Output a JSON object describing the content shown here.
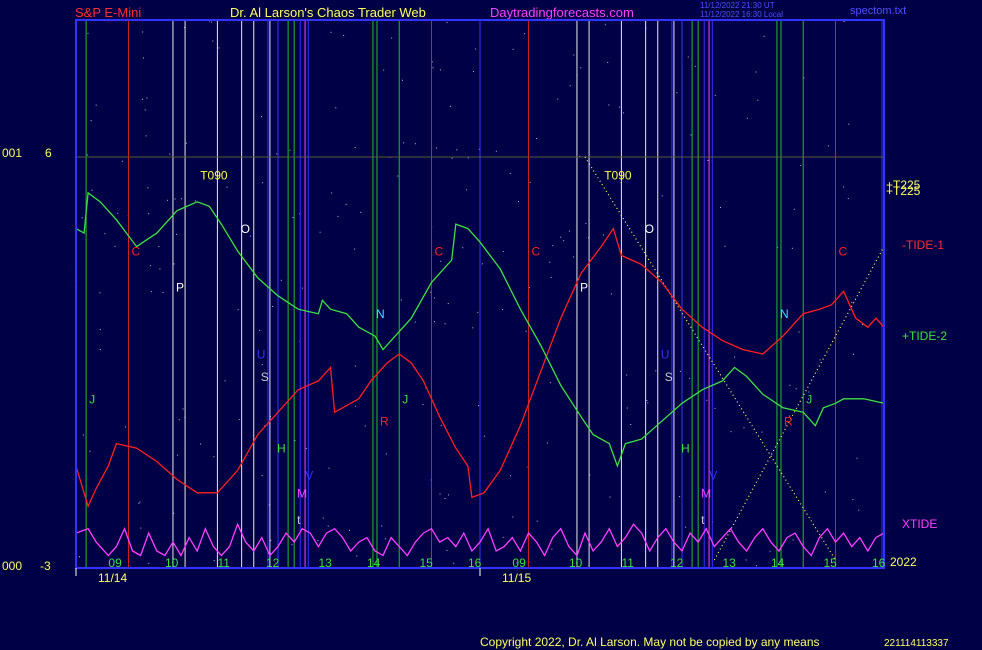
{
  "header": {
    "symbol": "S&P E-Mini",
    "author": "Dr. Al Larson's Chaos Trader Web",
    "site": "Daytradingforecasts.com",
    "timestamp_line1": "11/12/2022 21:30 UT",
    "timestamp_line2": "11/12/2022 16:30 Local",
    "file": "spectom.txt"
  },
  "footer": {
    "copyright": "Copyright 2022, Dr. Al Larson. May not be copied by any means",
    "code": "221114113337"
  },
  "colors": {
    "background": "#000046",
    "frame": "#3333ff",
    "tide1": "#ff2020",
    "tide2": "#40e040",
    "xtide": "#ff40ff",
    "dotted": "#ffff60"
  },
  "chart_data": {
    "type": "line",
    "y_axis": {
      "top_value": "6",
      "bottom_value": "-3",
      "top_tag": "001",
      "bottom_tag": "000"
    },
    "x_axis": {
      "hour_labels_day1": [
        "09",
        "10",
        "11",
        "12",
        "13",
        "14",
        "15",
        "16"
      ],
      "hour_labels_day2": [
        "09",
        "10",
        "11",
        "12",
        "13",
        "14",
        "15",
        "16"
      ],
      "dates": [
        "11/14",
        "11/15"
      ],
      "year": "2022"
    },
    "vertical_lines": [
      {
        "x": 0.025,
        "color": "green"
      },
      {
        "x": 0.13,
        "color": "red"
      },
      {
        "x": 0.24,
        "color": "white"
      },
      {
        "x": 0.27,
        "color": "white"
      },
      {
        "x": 0.35,
        "color": "white"
      },
      {
        "x": 0.41,
        "color": "white"
      },
      {
        "x": 0.44,
        "color": "white"
      },
      {
        "x": 0.475,
        "color": "blue"
      },
      {
        "x": 0.48,
        "color": "white"
      },
      {
        "x": 0.5,
        "color": "blue"
      },
      {
        "x": 0.525,
        "color": "green"
      },
      {
        "x": 0.54,
        "color": "green"
      },
      {
        "x": 0.555,
        "color": "blue"
      },
      {
        "x": 0.567,
        "color": "magenta"
      },
      {
        "x": 0.575,
        "color": "blue"
      },
      {
        "x": 0.735,
        "color": "green"
      },
      {
        "x": 0.745,
        "color": "green"
      },
      {
        "x": 0.8,
        "color": "green"
      },
      {
        "x": 0.88,
        "color": "red"
      },
      {
        "x": 1.0,
        "color": "blue"
      },
      {
        "x": 1.12,
        "color": "red"
      },
      {
        "x": 1.24,
        "color": "white"
      },
      {
        "x": 1.27,
        "color": "white"
      },
      {
        "x": 1.35,
        "color": "white"
      },
      {
        "x": 1.41,
        "color": "white"
      },
      {
        "x": 1.44,
        "color": "white"
      },
      {
        "x": 1.475,
        "color": "blue"
      },
      {
        "x": 1.48,
        "color": "white"
      },
      {
        "x": 1.5,
        "color": "blue"
      },
      {
        "x": 1.525,
        "color": "green"
      },
      {
        "x": 1.54,
        "color": "green"
      },
      {
        "x": 1.555,
        "color": "blue"
      },
      {
        "x": 1.567,
        "color": "magenta"
      },
      {
        "x": 1.575,
        "color": "blue"
      },
      {
        "x": 1.735,
        "color": "green"
      },
      {
        "x": 1.745,
        "color": "green"
      },
      {
        "x": 1.8,
        "color": "green"
      },
      {
        "x": 1.88,
        "color": "red"
      },
      {
        "x": 1.995,
        "color": "blue"
      }
    ],
    "event_labels": [
      {
        "text": "T090",
        "x": 0.3,
        "y": 5.5,
        "color": "#ffff40"
      },
      {
        "text": "T090",
        "x": 1.3,
        "y": 5.5,
        "color": "#ffff40"
      },
      {
        "text": "O",
        "x": 0.4,
        "y": 4.3,
        "color": "#ffffff"
      },
      {
        "text": "O",
        "x": 1.4,
        "y": 4.3,
        "color": "#ffffff"
      },
      {
        "text": "C",
        "x": 0.13,
        "y": 3.8,
        "color": "#ff2020"
      },
      {
        "text": "C",
        "x": 0.88,
        "y": 3.8,
        "color": "#ff2020"
      },
      {
        "text": "C",
        "x": 1.12,
        "y": 3.8,
        "color": "#ff2020"
      },
      {
        "text": "C",
        "x": 1.88,
        "y": 3.8,
        "color": "#ff2020"
      },
      {
        "text": "P",
        "x": 0.24,
        "y": 3.0,
        "color": "#ffffff"
      },
      {
        "text": "P",
        "x": 1.24,
        "y": 3.0,
        "color": "#ffffff"
      },
      {
        "text": "N",
        "x": 0.735,
        "y": 2.4,
        "color": "#40e0ff"
      },
      {
        "text": "N",
        "x": 1.735,
        "y": 2.4,
        "color": "#40e0ff"
      },
      {
        "text": "U",
        "x": 0.44,
        "y": 1.5,
        "color": "#3333ff"
      },
      {
        "text": "U",
        "x": 1.44,
        "y": 1.5,
        "color": "#3333ff"
      },
      {
        "text": "S",
        "x": 0.45,
        "y": 1.0,
        "color": "#cccccc"
      },
      {
        "text": "S",
        "x": 1.45,
        "y": 1.0,
        "color": "#cccccc"
      },
      {
        "text": "J",
        "x": 0.025,
        "y": 0.5,
        "color": "#40e040"
      },
      {
        "text": "J",
        "x": 0.8,
        "y": 0.5,
        "color": "#40e040"
      },
      {
        "text": "J",
        "x": 1.8,
        "y": 0.5,
        "color": "#40e040"
      },
      {
        "text": "R",
        "x": 0.745,
        "y": 0.0,
        "color": "#ff2020"
      },
      {
        "text": "R",
        "x": 1.745,
        "y": 0.0,
        "color": "#ff2020"
      },
      {
        "text": "H",
        "x": 0.49,
        "y": -0.6,
        "color": "#40e040"
      },
      {
        "text": "H",
        "x": 1.49,
        "y": -0.6,
        "color": "#40e040"
      },
      {
        "text": "V",
        "x": 0.56,
        "y": -1.2,
        "color": "#3333ff"
      },
      {
        "text": "V",
        "x": 1.56,
        "y": -1.2,
        "color": "#3333ff"
      },
      {
        "text": "M",
        "x": 0.54,
        "y": -1.6,
        "color": "#ff40ff"
      },
      {
        "text": "M",
        "x": 1.54,
        "y": -1.6,
        "color": "#ff40ff"
      },
      {
        "text": "t",
        "x": 0.54,
        "y": -2.2,
        "color": "#cccccc"
      },
      {
        "text": "t",
        "x": 1.54,
        "y": -2.2,
        "color": "#cccccc"
      }
    ],
    "series": [
      {
        "name": "-TIDE-1",
        "color": "#ff2020",
        "points": [
          [
            0.0,
            -0.9
          ],
          [
            0.03,
            -1.8
          ],
          [
            0.05,
            -1.4
          ],
          [
            0.08,
            -0.9
          ],
          [
            0.1,
            -0.4
          ],
          [
            0.15,
            -0.5
          ],
          [
            0.2,
            -0.8
          ],
          [
            0.25,
            -1.2
          ],
          [
            0.3,
            -1.5
          ],
          [
            0.35,
            -1.5
          ],
          [
            0.4,
            -1.0
          ],
          [
            0.45,
            -0.2
          ],
          [
            0.5,
            0.3
          ],
          [
            0.55,
            0.8
          ],
          [
            0.6,
            1.0
          ],
          [
            0.63,
            1.3
          ],
          [
            0.64,
            0.3
          ],
          [
            0.66,
            0.4
          ],
          [
            0.7,
            0.6
          ],
          [
            0.73,
            1.0
          ],
          [
            0.77,
            1.4
          ],
          [
            0.8,
            1.6
          ],
          [
            0.83,
            1.4
          ],
          [
            0.86,
            1.0
          ],
          [
            0.9,
            0.2
          ],
          [
            0.94,
            -0.5
          ],
          [
            0.97,
            -0.9
          ],
          [
            0.98,
            -1.6
          ],
          [
            1.01,
            -1.5
          ],
          [
            1.05,
            -1.0
          ],
          [
            1.1,
            0.0
          ],
          [
            1.15,
            1.2
          ],
          [
            1.2,
            2.4
          ],
          [
            1.25,
            3.4
          ],
          [
            1.3,
            4.0
          ],
          [
            1.33,
            4.4
          ],
          [
            1.35,
            3.8
          ],
          [
            1.4,
            3.6
          ],
          [
            1.45,
            3.2
          ],
          [
            1.5,
            2.6
          ],
          [
            1.55,
            2.2
          ],
          [
            1.6,
            1.9
          ],
          [
            1.65,
            1.7
          ],
          [
            1.7,
            1.6
          ],
          [
            1.75,
            2.0
          ],
          [
            1.8,
            2.5
          ],
          [
            1.84,
            2.6
          ],
          [
            1.87,
            2.7
          ],
          [
            1.9,
            3.0
          ],
          [
            1.93,
            2.4
          ],
          [
            1.96,
            2.2
          ],
          [
            1.98,
            2.4
          ],
          [
            2.0,
            2.2
          ]
        ]
      },
      {
        "name": "+TIDE-2",
        "color": "#40e040",
        "points": [
          [
            0.0,
            4.4
          ],
          [
            0.02,
            4.3
          ],
          [
            0.03,
            5.2
          ],
          [
            0.06,
            5.0
          ],
          [
            0.1,
            4.6
          ],
          [
            0.15,
            4.0
          ],
          [
            0.2,
            4.3
          ],
          [
            0.25,
            4.8
          ],
          [
            0.3,
            5.0
          ],
          [
            0.33,
            4.9
          ],
          [
            0.36,
            4.5
          ],
          [
            0.4,
            3.9
          ],
          [
            0.45,
            3.3
          ],
          [
            0.5,
            2.9
          ],
          [
            0.55,
            2.6
          ],
          [
            0.6,
            2.5
          ],
          [
            0.61,
            2.8
          ],
          [
            0.63,
            2.6
          ],
          [
            0.67,
            2.5
          ],
          [
            0.7,
            2.2
          ],
          [
            0.74,
            2.0
          ],
          [
            0.76,
            1.7
          ],
          [
            0.78,
            1.9
          ],
          [
            0.83,
            2.4
          ],
          [
            0.88,
            3.2
          ],
          [
            0.93,
            3.7
          ],
          [
            0.94,
            4.5
          ],
          [
            0.97,
            4.4
          ],
          [
            1.0,
            4.1
          ],
          [
            1.05,
            3.5
          ],
          [
            1.1,
            2.6
          ],
          [
            1.15,
            1.8
          ],
          [
            1.2,
            0.9
          ],
          [
            1.25,
            0.2
          ],
          [
            1.28,
            -0.2
          ],
          [
            1.32,
            -0.4
          ],
          [
            1.34,
            -0.9
          ],
          [
            1.36,
            -0.4
          ],
          [
            1.4,
            -0.3
          ],
          [
            1.45,
            0.1
          ],
          [
            1.5,
            0.5
          ],
          [
            1.55,
            0.8
          ],
          [
            1.6,
            1.0
          ],
          [
            1.63,
            1.3
          ],
          [
            1.66,
            1.1
          ],
          [
            1.7,
            0.7
          ],
          [
            1.75,
            0.4
          ],
          [
            1.8,
            0.3
          ],
          [
            1.83,
            0.0
          ],
          [
            1.85,
            0.4
          ],
          [
            1.88,
            0.5
          ],
          [
            1.9,
            0.6
          ],
          [
            1.95,
            0.6
          ],
          [
            2.0,
            0.5
          ]
        ]
      },
      {
        "name": "XTIDE",
        "color": "#ff40ff",
        "points": [
          [
            0.0,
            -2.4
          ],
          [
            0.03,
            -2.3
          ],
          [
            0.05,
            -2.6
          ],
          [
            0.08,
            -2.9
          ],
          [
            0.1,
            -2.7
          ],
          [
            0.12,
            -2.3
          ],
          [
            0.14,
            -2.8
          ],
          [
            0.16,
            -2.9
          ],
          [
            0.18,
            -2.4
          ],
          [
            0.2,
            -2.8
          ],
          [
            0.22,
            -2.9
          ],
          [
            0.24,
            -2.6
          ],
          [
            0.26,
            -2.9
          ],
          [
            0.28,
            -2.5
          ],
          [
            0.3,
            -2.8
          ],
          [
            0.32,
            -2.3
          ],
          [
            0.34,
            -2.7
          ],
          [
            0.36,
            -2.9
          ],
          [
            0.38,
            -2.7
          ],
          [
            0.4,
            -2.2
          ],
          [
            0.42,
            -2.6
          ],
          [
            0.44,
            -2.8
          ],
          [
            0.46,
            -2.5
          ],
          [
            0.48,
            -2.9
          ],
          [
            0.5,
            -2.7
          ],
          [
            0.52,
            -2.4
          ],
          [
            0.54,
            -2.6
          ],
          [
            0.56,
            -2.3
          ],
          [
            0.58,
            -2.4
          ],
          [
            0.6,
            -2.7
          ],
          [
            0.62,
            -2.4
          ],
          [
            0.64,
            -2.3
          ],
          [
            0.66,
            -2.5
          ],
          [
            0.68,
            -2.8
          ],
          [
            0.7,
            -2.6
          ],
          [
            0.72,
            -2.5
          ],
          [
            0.74,
            -2.8
          ],
          [
            0.76,
            -2.9
          ],
          [
            0.78,
            -2.5
          ],
          [
            0.8,
            -2.7
          ],
          [
            0.82,
            -2.9
          ],
          [
            0.84,
            -2.6
          ],
          [
            0.86,
            -2.4
          ],
          [
            0.88,
            -2.3
          ],
          [
            0.9,
            -2.6
          ],
          [
            0.92,
            -2.5
          ],
          [
            0.94,
            -2.7
          ],
          [
            0.96,
            -2.4
          ],
          [
            0.98,
            -2.8
          ],
          [
            1.0,
            -2.6
          ],
          [
            1.02,
            -2.3
          ],
          [
            1.04,
            -2.8
          ],
          [
            1.06,
            -2.7
          ],
          [
            1.08,
            -2.5
          ],
          [
            1.1,
            -2.8
          ],
          [
            1.12,
            -2.4
          ],
          [
            1.14,
            -2.6
          ],
          [
            1.16,
            -2.9
          ],
          [
            1.18,
            -2.5
          ],
          [
            1.2,
            -2.3
          ],
          [
            1.22,
            -2.7
          ],
          [
            1.24,
            -2.9
          ],
          [
            1.26,
            -2.4
          ],
          [
            1.28,
            -2.8
          ],
          [
            1.3,
            -2.6
          ],
          [
            1.32,
            -2.3
          ],
          [
            1.34,
            -2.7
          ],
          [
            1.36,
            -2.5
          ],
          [
            1.38,
            -2.2
          ],
          [
            1.4,
            -2.4
          ],
          [
            1.42,
            -2.8
          ],
          [
            1.44,
            -2.5
          ],
          [
            1.46,
            -2.3
          ],
          [
            1.48,
            -2.6
          ],
          [
            1.5,
            -2.8
          ],
          [
            1.52,
            -2.4
          ],
          [
            1.54,
            -2.6
          ],
          [
            1.56,
            -2.3
          ],
          [
            1.58,
            -2.7
          ],
          [
            1.6,
            -2.5
          ],
          [
            1.62,
            -2.3
          ],
          [
            1.64,
            -2.6
          ],
          [
            1.66,
            -2.8
          ],
          [
            1.68,
            -2.5
          ],
          [
            1.7,
            -2.3
          ],
          [
            1.72,
            -2.6
          ],
          [
            1.74,
            -2.8
          ],
          [
            1.76,
            -2.5
          ],
          [
            1.78,
            -2.4
          ],
          [
            1.8,
            -2.7
          ],
          [
            1.82,
            -2.9
          ],
          [
            1.84,
            -2.5
          ],
          [
            1.86,
            -2.3
          ],
          [
            1.88,
            -2.6
          ],
          [
            1.9,
            -2.4
          ],
          [
            1.92,
            -2.7
          ],
          [
            1.94,
            -2.5
          ],
          [
            1.96,
            -2.8
          ],
          [
            1.98,
            -2.5
          ],
          [
            2.0,
            -2.4
          ]
        ]
      }
    ],
    "trend_lines": [
      {
        "name": "+T225",
        "from": [
          1.26,
          6.0
        ],
        "to": [
          1.88,
          -3.0
        ]
      },
      {
        "name": "+T225",
        "from": [
          1.58,
          -3.0
        ],
        "to": [
          2.0,
          4.0
        ]
      }
    ],
    "labels": {
      "tide1": "-TIDE-1",
      "tide2": "+TIDE-2",
      "xtide": "XTIDE",
      "t225_a": "+T225",
      "t225_b": "+T225"
    }
  }
}
